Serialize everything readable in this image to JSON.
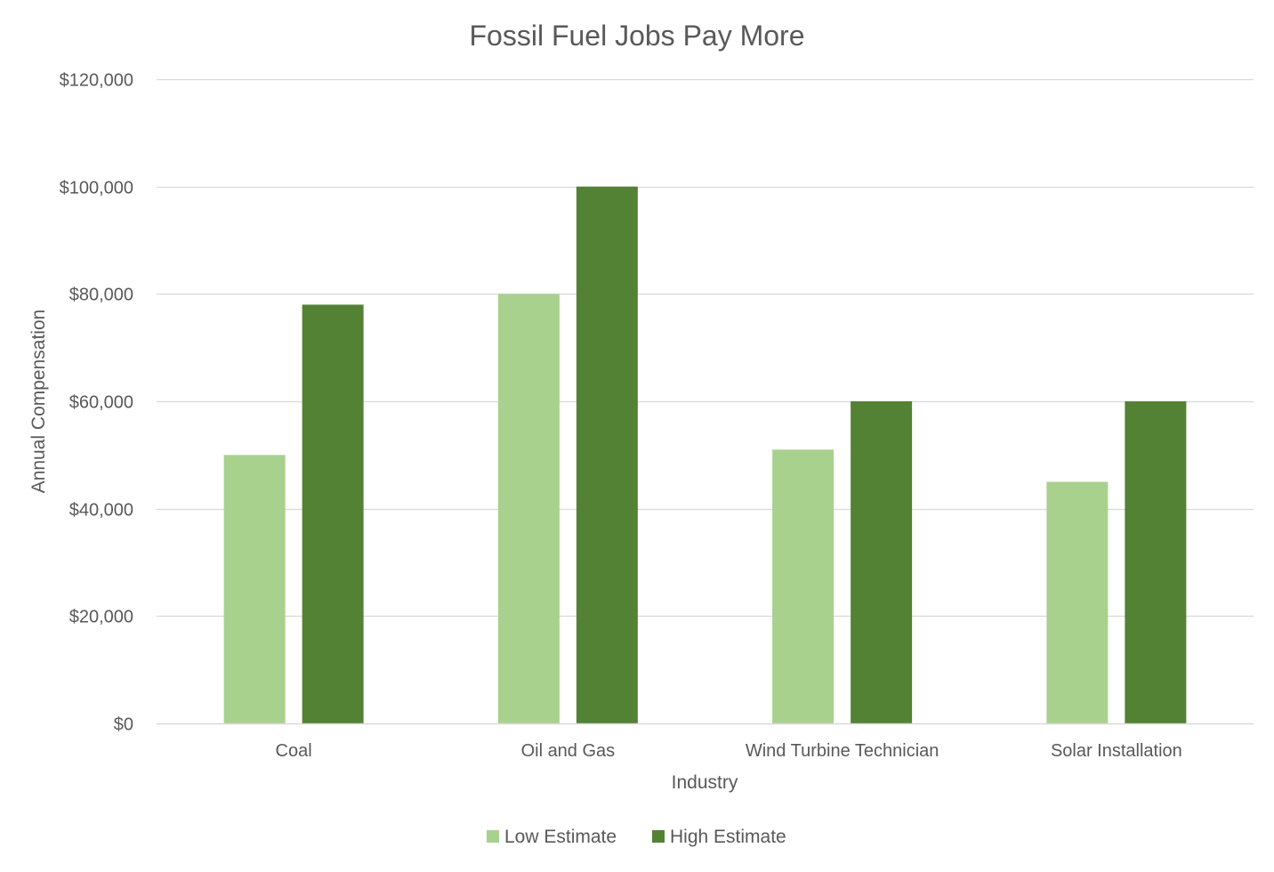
{
  "chart_data": {
    "type": "bar",
    "title": "Fossil Fuel Jobs Pay More",
    "xlabel": "Industry",
    "ylabel": "Annual Compensation",
    "categories": [
      "Coal",
      "Oil and Gas",
      "Wind Turbine Technician",
      "Solar Installation"
    ],
    "series": [
      {
        "name": "Low Estimate",
        "color": "#a9d18e",
        "values": [
          50000,
          80000,
          51000,
          45000
        ]
      },
      {
        "name": "High Estimate",
        "color": "#548235",
        "values": [
          78000,
          100000,
          60000,
          60000
        ]
      }
    ],
    "ylim": [
      0,
      120000
    ],
    "yticks": [
      0,
      20000,
      40000,
      60000,
      80000,
      100000,
      120000
    ],
    "ytick_labels": [
      "$0",
      "$20,000",
      "$40,000",
      "$60,000",
      "$80,000",
      "$100,000",
      "$120,000"
    ],
    "grid": true,
    "legend_position": "bottom"
  }
}
